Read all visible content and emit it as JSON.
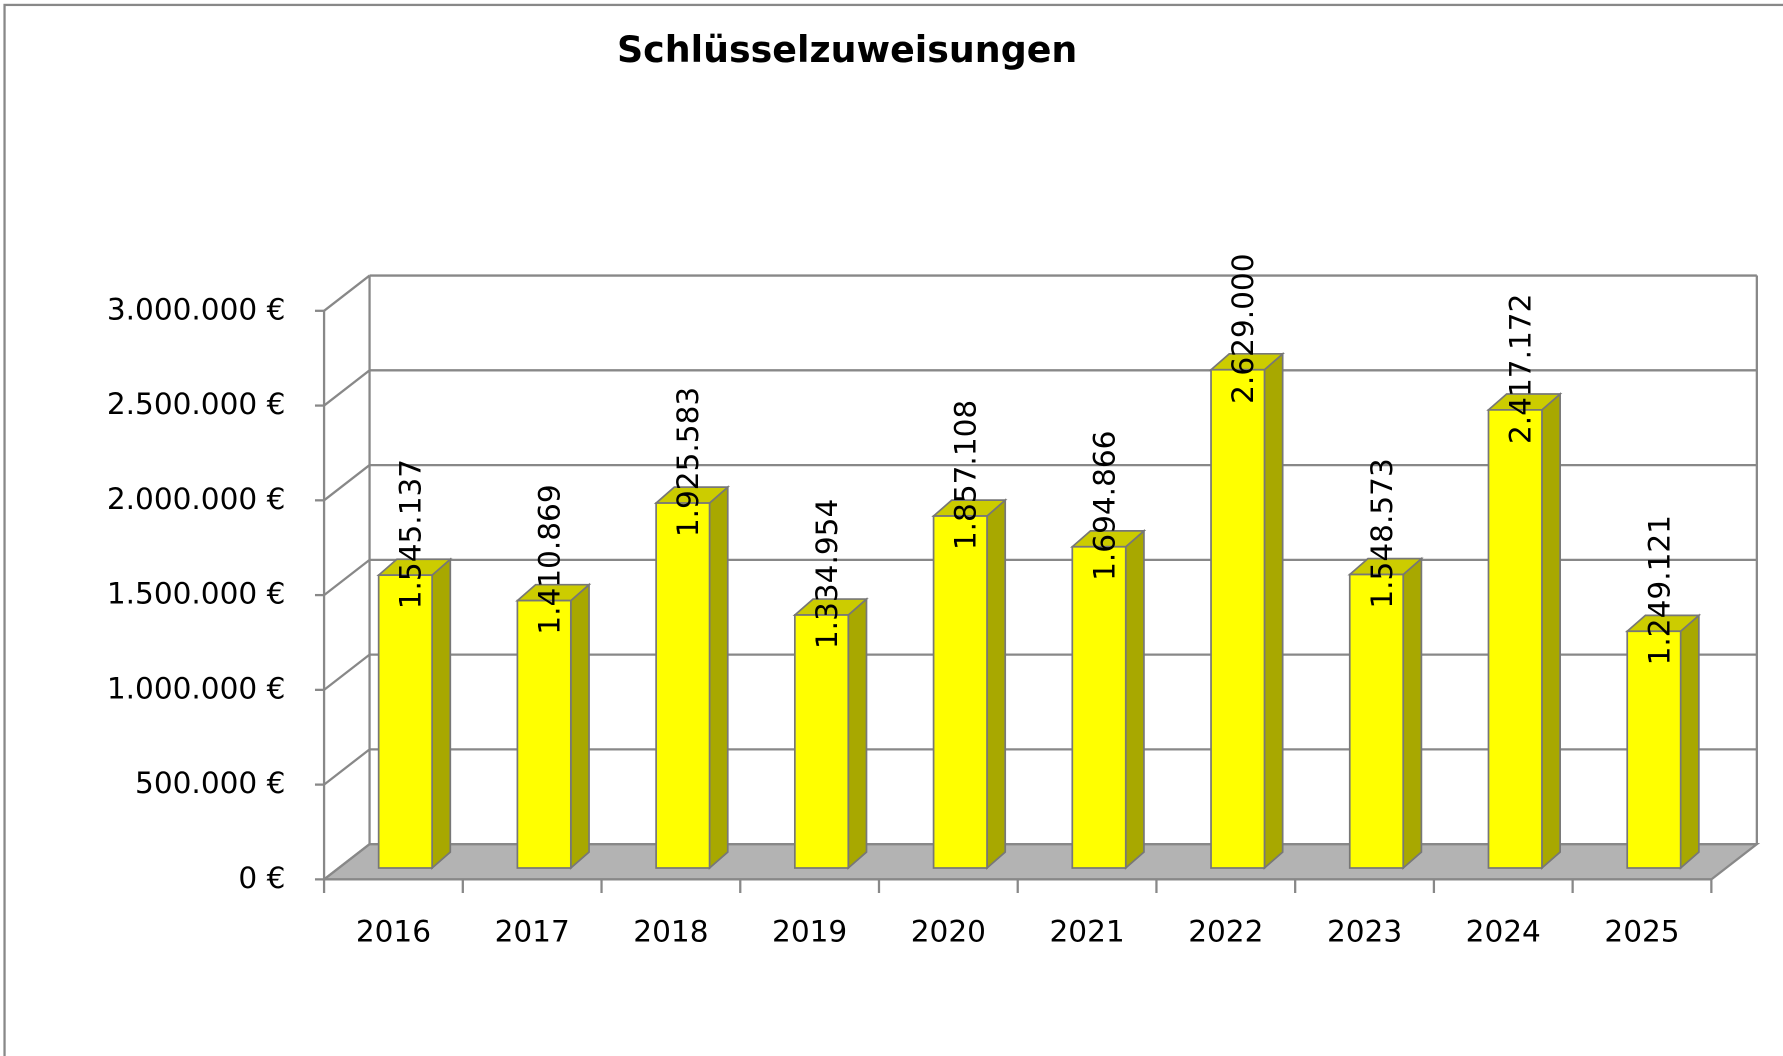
{
  "chart_data": {
    "type": "bar3d",
    "title": "Schlüsselzuweisungen",
    "categories": [
      "2016",
      "2017",
      "2018",
      "2019",
      "2020",
      "2021",
      "2022",
      "2023",
      "2024",
      "2025"
    ],
    "values": [
      1545137,
      1410869,
      1925583,
      1334954,
      1857108,
      1694866,
      2629000,
      1548573,
      2417172,
      1249121
    ],
    "value_labels": [
      "1.545.137",
      "1.410.869",
      "1.925.583",
      "1.334.954",
      "1.857.108",
      "1.694.866",
      "2.629.000",
      "1.548.573",
      "2.417.172",
      "1.249.121"
    ],
    "color": "#ffff00",
    "ylim": [
      0,
      3000000
    ],
    "yticks": [
      {
        "value": 0,
        "label": "0 €"
      },
      {
        "value": 500000,
        "label": "500.000 €"
      },
      {
        "value": 1000000,
        "label": "1.000.000 €"
      },
      {
        "value": 1500000,
        "label": "1.500.000 €"
      },
      {
        "value": 2000000,
        "label": "2.000.000 €"
      },
      {
        "value": 2500000,
        "label": "2.500.000 €"
      },
      {
        "value": 3000000,
        "label": "3.000.000 €"
      }
    ],
    "grid": true
  }
}
